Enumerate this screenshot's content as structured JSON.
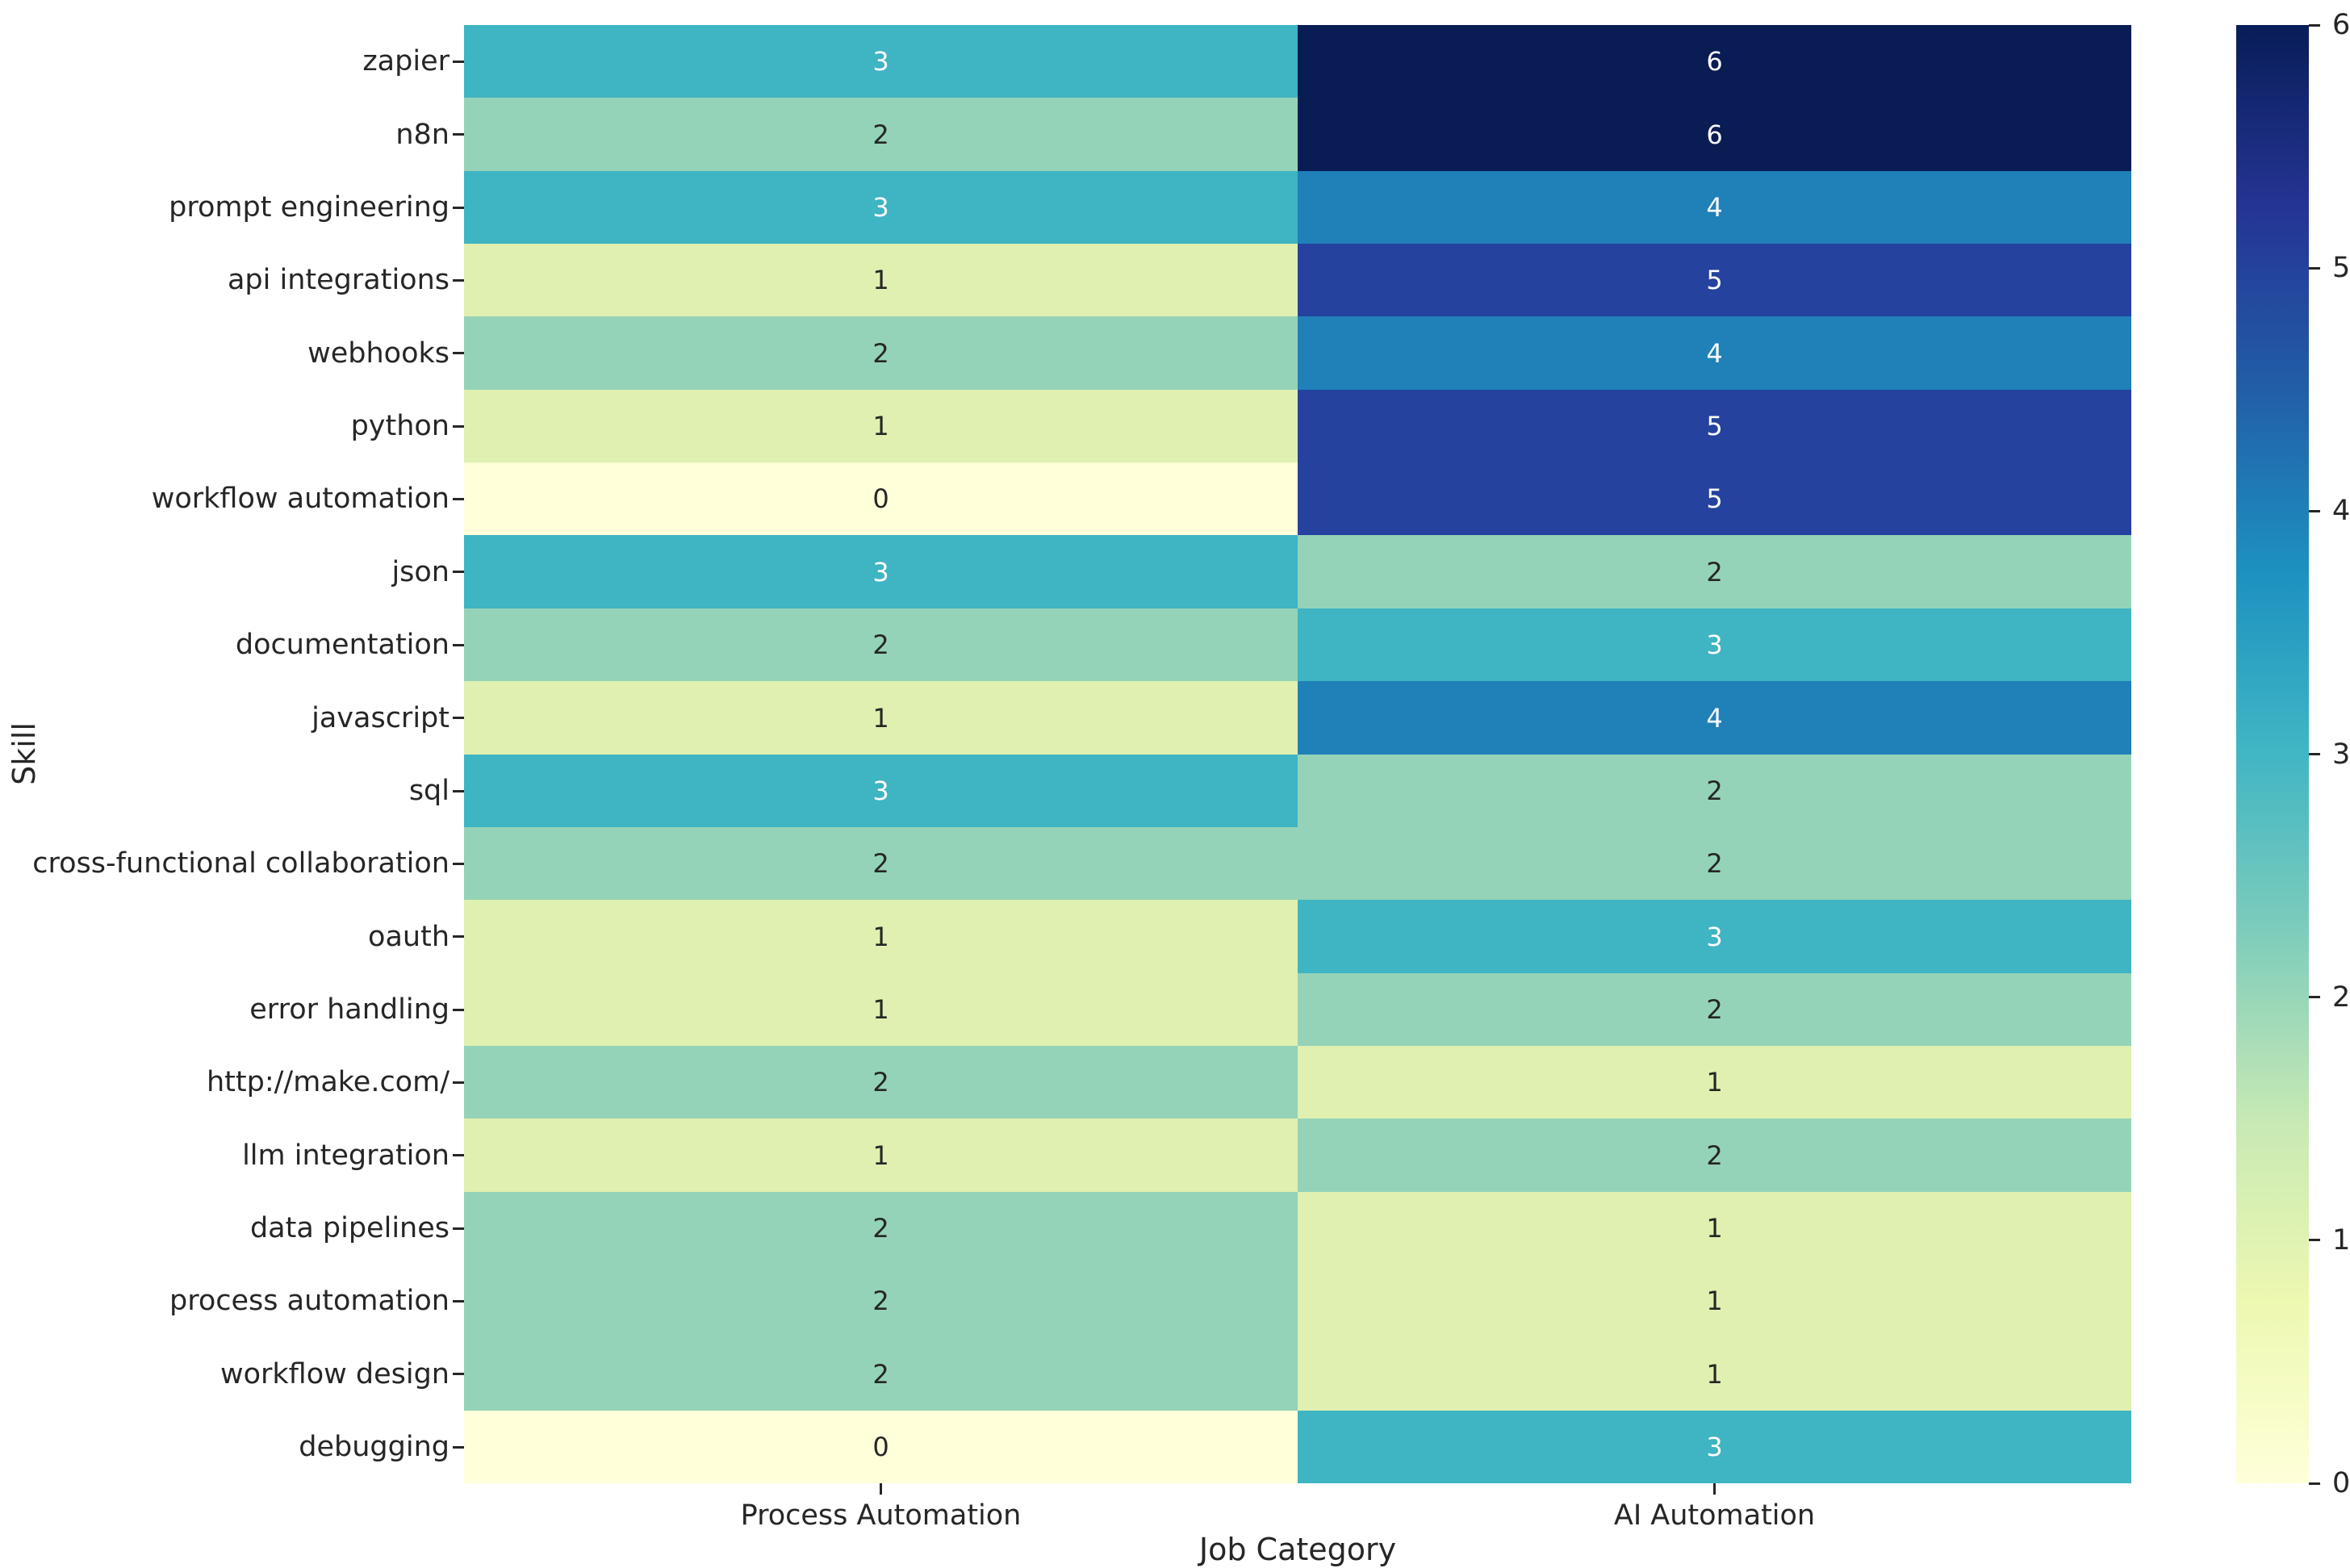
{
  "chart_data": {
    "type": "heatmap",
    "title": "",
    "xlabel": "Job Category",
    "ylabel": "Skill",
    "columns": [
      "Process Automation",
      "AI Automation"
    ],
    "rows": [
      "zapier",
      "n8n",
      "prompt engineering",
      "api integrations",
      "webhooks",
      "python",
      "workflow automation",
      "json",
      "documentation",
      "javascript",
      "sql",
      "cross-functional collaboration",
      "oauth",
      "error handling",
      "http://make.com/",
      "llm integration",
      "data pipelines",
      "process automation",
      "workflow design",
      "debugging"
    ],
    "values": [
      [
        3,
        6
      ],
      [
        2,
        6
      ],
      [
        3,
        4
      ],
      [
        1,
        5
      ],
      [
        2,
        4
      ],
      [
        1,
        5
      ],
      [
        0,
        5
      ],
      [
        3,
        2
      ],
      [
        2,
        3
      ],
      [
        1,
        4
      ],
      [
        3,
        2
      ],
      [
        2,
        2
      ],
      [
        1,
        3
      ],
      [
        1,
        2
      ],
      [
        2,
        1
      ],
      [
        1,
        2
      ],
      [
        2,
        1
      ],
      [
        2,
        1
      ],
      [
        2,
        1
      ],
      [
        0,
        3
      ]
    ],
    "vmin": 0,
    "vmax": 6,
    "colormap": "YlGnBu",
    "grid": false,
    "legend_position": "right-colorbar",
    "colorbar_tick_labels_top_to_bottom": [
      "6",
      "5",
      "4",
      "3",
      "2",
      "1",
      "0"
    ],
    "value_colors": {
      "0": "#ffffd9",
      "1": "#dff0b0",
      "2": "#94d3b7",
      "3": "#3fb4c3",
      "4": "#2080b8",
      "5": "#24429e",
      "6": "#091c53"
    },
    "colorbar_gradient_top_to_bottom": [
      "#081d58",
      "#253494",
      "#225ea8",
      "#1d91c0",
      "#41b6c4",
      "#7fcdbb",
      "#c7e9b4",
      "#edf8b1",
      "#ffffd9"
    ],
    "annotation_text_dark": "#262626",
    "annotation_text_light": "#ffffff",
    "white_text_threshold": 3
  }
}
